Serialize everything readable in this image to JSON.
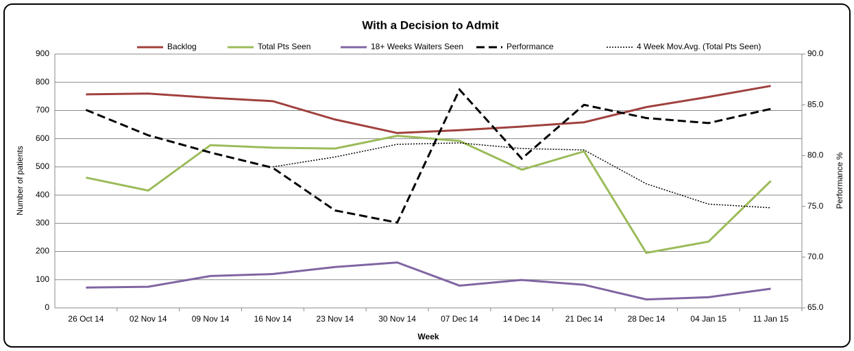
{
  "chart_data": {
    "type": "line",
    "title": "With a Decision to Admit",
    "x_label": "Week",
    "y_label": "Number of patients",
    "y2_label": "Performance %",
    "categories": [
      "26 Oct 14",
      "02 Nov 14",
      "09 Nov 14",
      "16 Nov 14",
      "23 Nov 14",
      "30 Nov 14",
      "07 Dec 14",
      "14 Dec 14",
      "21 Dec 14",
      "28 Dec 14",
      "04 Jan 15",
      "11 Jan 15"
    ],
    "ylim": [
      0,
      900
    ],
    "yticks": [
      0,
      100,
      200,
      300,
      400,
      500,
      600,
      700,
      800,
      900
    ],
    "y2lim": [
      65,
      90
    ],
    "y2ticks": [
      {
        "value": 65,
        "label": "65.0"
      },
      {
        "value": 70,
        "label": "70.0"
      },
      {
        "value": 75,
        "label": "75.0"
      },
      {
        "value": 80,
        "label": "80.0"
      },
      {
        "value": 85,
        "label": "85.0"
      },
      {
        "value": 90,
        "label": "90.0"
      }
    ],
    "grid": true,
    "legend": "top",
    "series": [
      {
        "name": "Backlog",
        "color": "#a0403d",
        "style": "solid",
        "values": [
          757,
          760,
          745,
          733,
          668,
          620,
          630,
          643,
          658,
          712,
          748,
          787
        ]
      },
      {
        "name": "Total Pts Seen",
        "color": "#9bbb59",
        "style": "solid",
        "values": [
          462,
          416,
          577,
          568,
          565,
          610,
          592,
          490,
          555,
          195,
          235,
          450
        ]
      },
      {
        "name": "18+ Weeks Waiters Seen",
        "color": "#8064a2",
        "style": "solid",
        "values": [
          72,
          75,
          113,
          120,
          145,
          161,
          79,
          99,
          82,
          30,
          38,
          68
        ]
      },
      {
        "name": "Performance",
        "color": "#000000",
        "style": "dashed",
        "axis": "y2",
        "values": [
          84.5,
          82.0,
          80.3,
          78.8,
          74.6,
          73.4,
          86.5,
          79.7,
          85.0,
          83.7,
          83.2,
          84.6
        ]
      },
      {
        "name": "4 Week Mov.Avg. (Total Pts Seen)",
        "color": "#000000",
        "style": "dotted",
        "values": [
          null,
          null,
          null,
          500,
          535,
          580,
          585,
          565,
          560,
          440,
          368,
          355
        ]
      }
    ]
  }
}
